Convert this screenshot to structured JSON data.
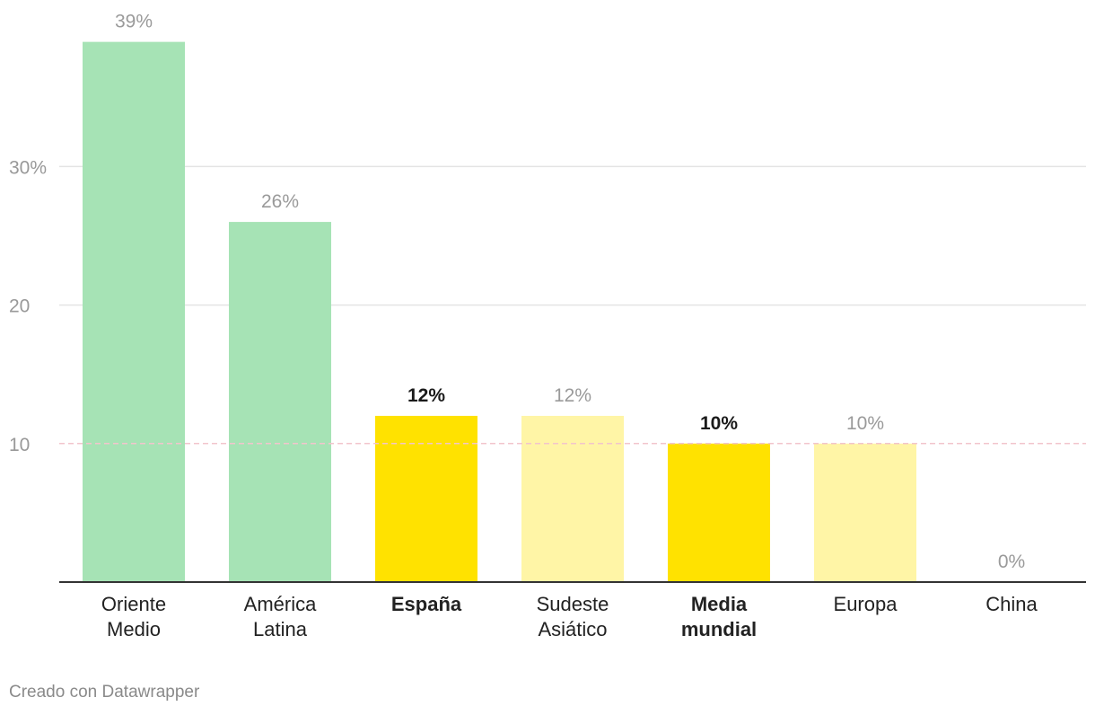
{
  "chart_data": {
    "type": "bar",
    "categories": [
      [
        "Oriente",
        "Medio"
      ],
      [
        "América",
        "Latina"
      ],
      [
        "España"
      ],
      [
        "Sudeste",
        "Asiático"
      ],
      [
        "Media",
        "mundial"
      ],
      [
        "Europa"
      ],
      [
        "China"
      ]
    ],
    "values": [
      39,
      26,
      12,
      12,
      10,
      10,
      0
    ],
    "value_labels": [
      "39%",
      "26%",
      "12%",
      "12%",
      "10%",
      "10%",
      "0%"
    ],
    "highlight": [
      false,
      false,
      true,
      false,
      true,
      false,
      false
    ],
    "bar_colors": [
      "#a6e3b5",
      "#a6e3b5",
      "#ffe200",
      "#fff5a6",
      "#ffe200",
      "#fff5a6",
      "#fff5a6"
    ],
    "y_ticks": [
      {
        "value": 10,
        "label": "10"
      },
      {
        "value": 20,
        "label": "20"
      },
      {
        "value": 30,
        "label": "30%"
      }
    ],
    "ylim": [
      0,
      40
    ],
    "reference_line": {
      "value": 10,
      "style": "dashed",
      "color": "#f2c4cc"
    },
    "grid": true,
    "title": "",
    "xlabel": "",
    "ylabel": ""
  },
  "credit": "Creado con Datawrapper"
}
